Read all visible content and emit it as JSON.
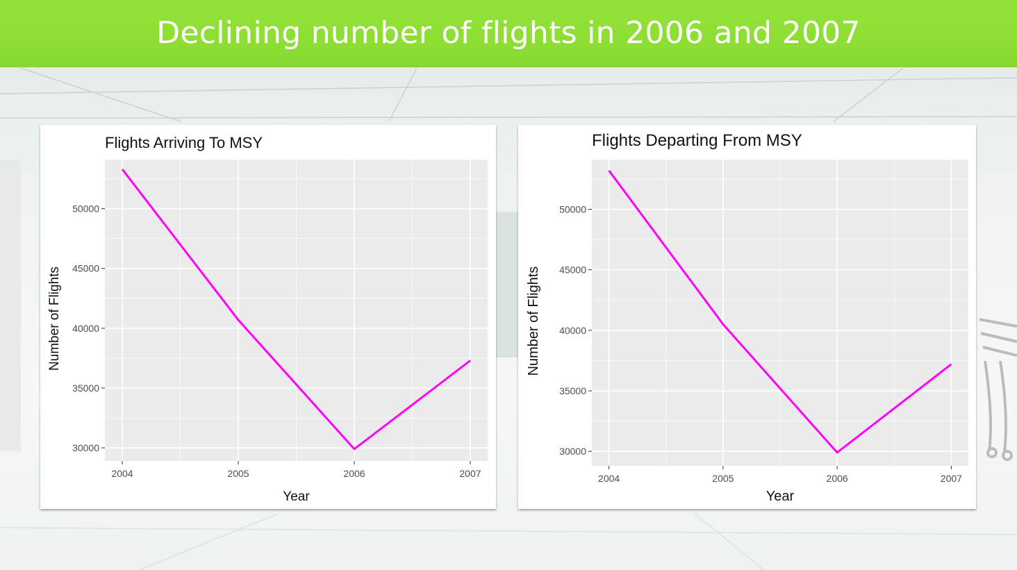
{
  "header": {
    "title": "Declining number of flights in 2006 and 2007"
  },
  "colors": {
    "header_bg": "#8ede34",
    "line": "#ff00ff",
    "panel_bg": "#ebebeb",
    "grid": "#ffffff"
  },
  "chart_data": [
    {
      "type": "line",
      "title": "Flights Arriving To MSY",
      "xlabel": "Year",
      "ylabel": "Number of Flights",
      "x": [
        2004,
        2005,
        2006,
        2007
      ],
      "x_ticks": [
        "2004",
        "2005",
        "2006",
        "2007"
      ],
      "y_ticks": [
        "50000",
        "45000",
        "40000",
        "35000",
        "30000"
      ],
      "y_tick_values": [
        50000,
        45000,
        40000,
        35000,
        30000
      ],
      "series": [
        {
          "values": [
            53300,
            40700,
            29900,
            37300
          ]
        }
      ],
      "xlim": [
        2003.85,
        2007.15
      ],
      "ylim": [
        28900,
        54100
      ],
      "grid": true
    },
    {
      "type": "line",
      "title": "Flights Departing From MSY",
      "xlabel": "Year",
      "ylabel": "Number of Flights",
      "x": [
        2004,
        2005,
        2006,
        2007
      ],
      "x_ticks": [
        "2004",
        "2005",
        "2006",
        "2007"
      ],
      "y_ticks": [
        "50000",
        "45000",
        "40000",
        "35000",
        "30000"
      ],
      "y_tick_values": [
        50000,
        45000,
        40000,
        35000,
        30000
      ],
      "series": [
        {
          "values": [
            53200,
            40500,
            29900,
            37200
          ]
        }
      ],
      "xlim": [
        2003.85,
        2007.15
      ],
      "ylim": [
        28800,
        54100
      ],
      "grid": true
    }
  ]
}
